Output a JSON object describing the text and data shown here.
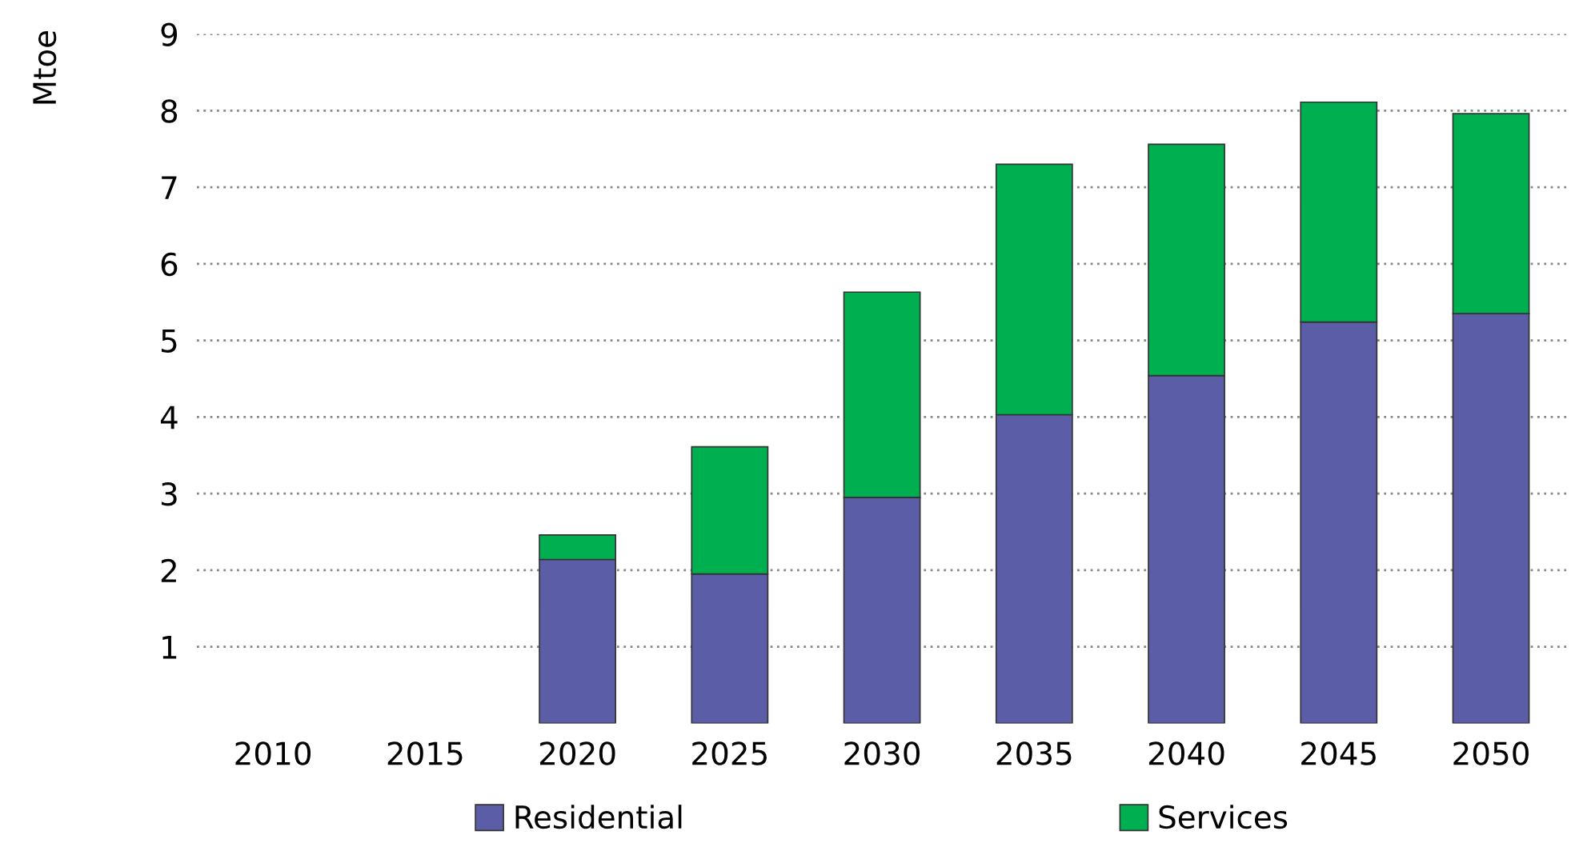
{
  "chart_data": {
    "type": "bar",
    "stacked": true,
    "ylabel": "Mtoe",
    "categories": [
      "2010",
      "2015",
      "2020",
      "2025",
      "2030",
      "2035",
      "2040",
      "2045",
      "2050"
    ],
    "series": [
      {
        "name": "Residential",
        "color": "#5b5ea6",
        "values": [
          null,
          null,
          2.14,
          1.95,
          2.95,
          4.03,
          4.54,
          5.24,
          5.35
        ]
      },
      {
        "name": "Services",
        "color": "#00b050",
        "values": [
          null,
          null,
          0.32,
          1.66,
          2.68,
          3.27,
          3.02,
          2.87,
          2.61
        ]
      }
    ],
    "ylim": [
      0,
      9
    ],
    "yticks": [
      1,
      2,
      3,
      4,
      5,
      6,
      7,
      8,
      9
    ],
    "grid": "y",
    "legend": "bottom"
  }
}
